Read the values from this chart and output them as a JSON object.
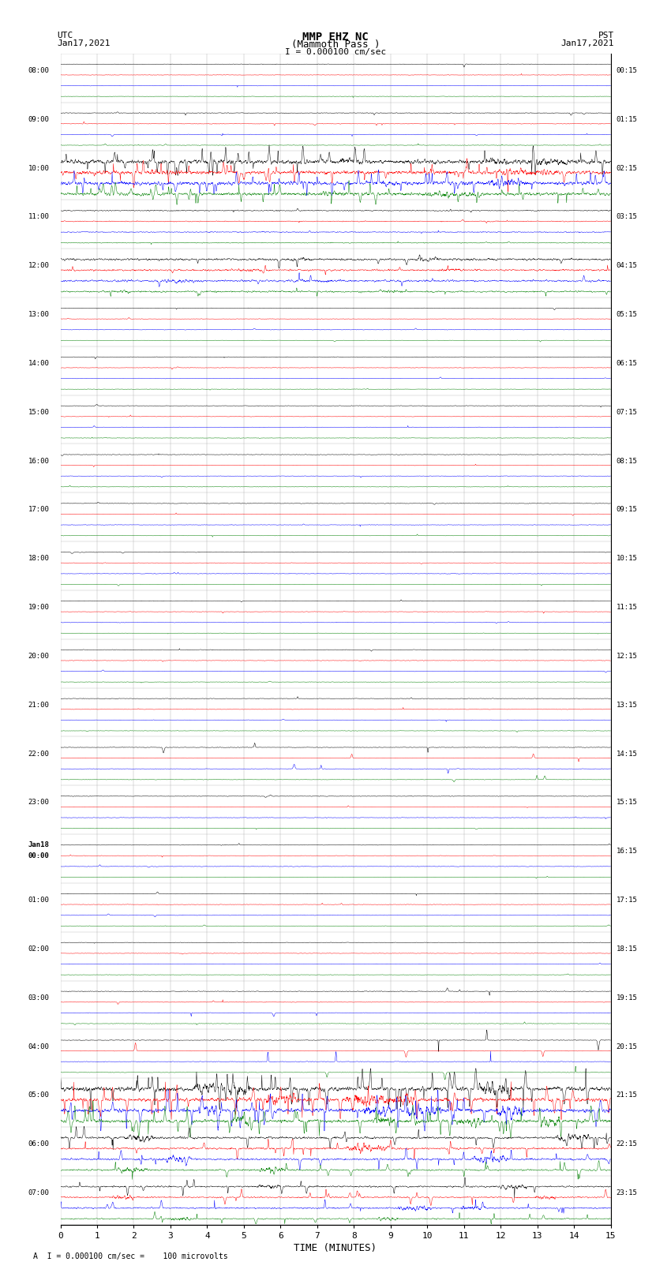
{
  "title_line1": "MMP EHZ NC",
  "title_line2": "(Mammoth Pass )",
  "scale_label": "I = 0.000100 cm/sec",
  "utc_label": "UTC",
  "utc_date": "Jan17,2021",
  "pst_label": "PST",
  "pst_date": "Jan17,2021",
  "bottom_note": "A  I = 0.000100 cm/sec =    100 microvolts",
  "xlabel": "TIME (MINUTES)",
  "bg_color": "#ffffff",
  "trace_colors": [
    "black",
    "red",
    "blue",
    "green"
  ],
  "utc_times": [
    "08:00",
    "09:00",
    "10:00",
    "11:00",
    "12:00",
    "13:00",
    "14:00",
    "15:00",
    "16:00",
    "17:00",
    "18:00",
    "19:00",
    "20:00",
    "21:00",
    "22:00",
    "23:00",
    "Jan18\n00:00",
    "01:00",
    "02:00",
    "03:00",
    "04:00",
    "05:00",
    "06:00",
    "07:00"
  ],
  "pst_times": [
    "00:15",
    "01:15",
    "02:15",
    "03:15",
    "04:15",
    "05:15",
    "06:15",
    "07:15",
    "08:15",
    "09:15",
    "10:15",
    "11:15",
    "12:15",
    "13:15",
    "14:15",
    "15:15",
    "16:15",
    "17:15",
    "18:15",
    "19:15",
    "20:15",
    "21:15",
    "22:15",
    "23:15"
  ],
  "num_rows": 24,
  "minutes_per_row": 15,
  "x_ticks": [
    0,
    1,
    2,
    3,
    4,
    5,
    6,
    7,
    8,
    9,
    10,
    11,
    12,
    13,
    14,
    15
  ],
  "grid_color": "#aaaaaa",
  "grid_linewidth": 0.3,
  "trace_linewidth": 0.35
}
